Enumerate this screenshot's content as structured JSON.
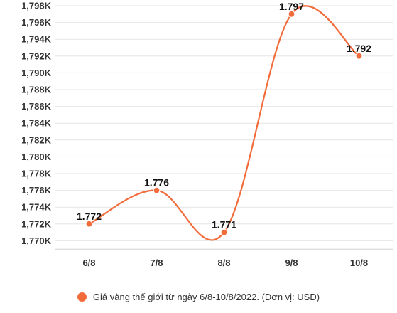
{
  "chart_data": {
    "type": "line",
    "categories": [
      "6/8",
      "7/8",
      "8/8",
      "9/8",
      "10/8"
    ],
    "series": [
      {
        "name": "Giá vàng thế giới từ ngày 6/8-10/8/2022. (Đơn vị: USD)",
        "values": [
          1772,
          1776,
          1771,
          1797,
          1792
        ],
        "data_labels": [
          "1.772",
          "1.776",
          "1.771",
          "1.797",
          "1.792"
        ],
        "color": "#f26b3a"
      }
    ],
    "ylim": [
      1769,
      1798
    ],
    "yticks": [
      1770,
      1772,
      1774,
      1776,
      1778,
      1780,
      1782,
      1784,
      1786,
      1788,
      1790,
      1792,
      1794,
      1796,
      1798
    ],
    "ytick_labels": [
      "1,770K",
      "1,772K",
      "1,774K",
      "1,776K",
      "1,778K",
      "1,780K",
      "1,782K",
      "1,784K",
      "1,786K",
      "1,788K",
      "1,790K",
      "1,792K",
      "1,794K",
      "1,796K",
      "1,798K"
    ],
    "grid": true,
    "legend_position": "bottom",
    "smooth": true
  }
}
